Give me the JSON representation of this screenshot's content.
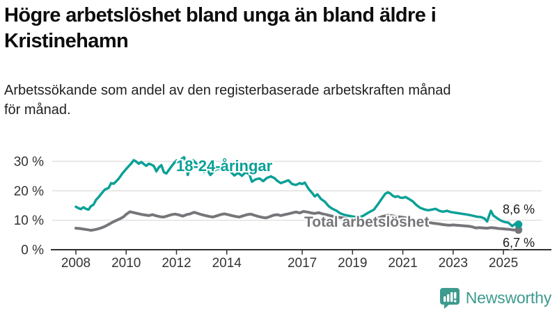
{
  "header": {
    "title_lines": [
      "Högre arbetslöshet bland unga än bland äldre i",
      "Kristinehamn"
    ],
    "subtitle_lines": [
      "Arbetssökande som andel av den registerbaserade arbetskraften månad",
      "för månad."
    ]
  },
  "chart_data": {
    "type": "line",
    "title": "Högre arbetslöshet bland unga än bland äldre i Kristinehamn",
    "subtitle": "Arbetssökande som andel av den registerbaserade arbetskraften månad för månad.",
    "xlabel": "",
    "ylabel": "",
    "xlim": [
      2007.1,
      2026.9
    ],
    "ylim": [
      0,
      33
    ],
    "grid": "horizontal",
    "legend_position": "inline-labels",
    "x_ticks": [
      2008,
      2010,
      2012,
      2014,
      2017,
      2019,
      2021,
      2023,
      2025
    ],
    "x_tick_labels": [
      "2008",
      "2010",
      "2012",
      "2014",
      "2017",
      "2019",
      "2021",
      "2023",
      "2025"
    ],
    "y_ticks": [
      0,
      10,
      20,
      30
    ],
    "y_tick_labels": [
      "0 %",
      "10 %",
      "20 %",
      "30 %"
    ],
    "series": [
      {
        "name": "18-24-åringar",
        "color": "#0ba097",
        "end_label": "8,6 %",
        "end_value": 8.6,
        "x": [
          2008.0,
          2008.1,
          2008.2,
          2008.3,
          2008.4,
          2008.5,
          2008.6,
          2008.7,
          2008.8,
          2008.9,
          2009.0,
          2009.15,
          2009.3,
          2009.4,
          2009.5,
          2009.6,
          2009.7,
          2009.85,
          2010.0,
          2010.1,
          2010.2,
          2010.3,
          2010.4,
          2010.5,
          2010.6,
          2010.7,
          2010.8,
          2010.9,
          2011.0,
          2011.1,
          2011.2,
          2011.3,
          2011.4,
          2011.5,
          2011.6,
          2011.7,
          2011.8,
          2011.9,
          2012.0,
          2012.1,
          2012.2,
          2012.3,
          2012.4,
          2012.45,
          2012.55,
          2012.65,
          2012.75,
          2012.85,
          2013.0,
          2013.1,
          2013.2,
          2013.35,
          2013.5,
          2013.65,
          2013.8,
          2014.0,
          2014.15,
          2014.3,
          2014.45,
          2014.6,
          2014.75,
          2014.9,
          2015.0,
          2015.15,
          2015.3,
          2015.45,
          2015.6,
          2015.75,
          2015.9,
          2016.0,
          2016.15,
          2016.3,
          2016.45,
          2016.6,
          2016.75,
          2016.9,
          2017.0,
          2017.1,
          2017.25,
          2017.4,
          2017.5,
          2017.6,
          2017.75,
          2017.9,
          2018.05,
          2018.2,
          2018.35,
          2018.5,
          2018.65,
          2018.8,
          2019.0,
          2019.2,
          2019.4,
          2019.55,
          2019.7,
          2019.85,
          2020.0,
          2020.15,
          2020.3,
          2020.4,
          2020.5,
          2020.6,
          2020.7,
          2020.8,
          2020.9,
          2021.0,
          2021.1,
          2021.25,
          2021.4,
          2021.55,
          2021.7,
          2021.85,
          2022.0,
          2022.15,
          2022.3,
          2022.45,
          2022.6,
          2022.75,
          2022.9,
          2023.05,
          2023.2,
          2023.35,
          2023.5,
          2023.65,
          2023.8,
          2023.95,
          2024.1,
          2024.25,
          2024.35,
          2024.5,
          2024.6,
          2024.75,
          2024.9,
          2025.05,
          2025.2,
          2025.35,
          2025.5,
          2025.6
        ],
        "values": [
          14.6,
          14.1,
          13.8,
          14.4,
          13.9,
          13.6,
          14.8,
          15.3,
          16.9,
          17.8,
          18.9,
          20.4,
          21.0,
          22.6,
          22.4,
          23.2,
          24.1,
          25.9,
          27.4,
          28.4,
          29.3,
          30.4,
          29.9,
          29.2,
          29.8,
          29.1,
          28.5,
          29.2,
          28.9,
          28.4,
          26.6,
          28.0,
          28.7,
          26.3,
          25.9,
          27.1,
          28.3,
          29.4,
          30.3,
          29.4,
          30.8,
          31.4,
          28.9,
          25.4,
          28.3,
          30.4,
          29.6,
          28.7,
          27.6,
          26.4,
          27.3,
          25.4,
          26.8,
          27.6,
          26.9,
          27.3,
          26.5,
          25.2,
          26.1,
          25.1,
          26.3,
          25.6,
          23.1,
          23.9,
          24.2,
          23.3,
          24.4,
          24.9,
          24.3,
          23.4,
          22.6,
          23.1,
          23.6,
          22.3,
          22.0,
          22.6,
          22.3,
          22.8,
          20.7,
          19.2,
          18.1,
          18.8,
          17.2,
          16.3,
          14.8,
          13.9,
          13.3,
          12.4,
          11.9,
          11.6,
          11.3,
          11.0,
          11.4,
          12.2,
          12.9,
          13.6,
          15.3,
          17.2,
          19.0,
          19.5,
          19.1,
          18.3,
          17.9,
          18.2,
          17.7,
          17.6,
          17.9,
          17.2,
          16.4,
          15.1,
          14.2,
          13.7,
          13.4,
          13.6,
          13.9,
          13.2,
          12.9,
          13.2,
          12.8,
          12.6,
          12.4,
          12.2,
          12.0,
          11.8,
          11.5,
          11.2,
          11.1,
          10.6,
          9.6,
          13.2,
          11.6,
          10.7,
          9.9,
          9.4,
          9.2,
          8.0,
          9.0,
          8.6
        ]
      },
      {
        "name": "Total arbetslöshet",
        "color": "#76767a",
        "end_label": "6,7 %",
        "end_value": 6.7,
        "x": [
          2008.0,
          2008.15,
          2008.3,
          2008.45,
          2008.6,
          2008.75,
          2008.9,
          2009.0,
          2009.15,
          2009.3,
          2009.45,
          2009.6,
          2009.75,
          2009.9,
          2010.0,
          2010.15,
          2010.3,
          2010.45,
          2010.6,
          2010.75,
          2010.9,
          2011.05,
          2011.2,
          2011.35,
          2011.5,
          2011.65,
          2011.8,
          2011.95,
          2012.1,
          2012.25,
          2012.4,
          2012.55,
          2012.7,
          2012.85,
          2013.0,
          2013.15,
          2013.3,
          2013.45,
          2013.6,
          2013.75,
          2013.9,
          2014.05,
          2014.2,
          2014.35,
          2014.5,
          2014.65,
          2014.8,
          2014.95,
          2015.1,
          2015.25,
          2015.4,
          2015.55,
          2015.7,
          2015.85,
          2016.0,
          2016.15,
          2016.3,
          2016.45,
          2016.6,
          2016.75,
          2016.9,
          2017.05,
          2017.2,
          2017.35,
          2017.5,
          2017.65,
          2017.8,
          2017.95,
          2018.1,
          2018.25,
          2018.4,
          2018.55,
          2018.7,
          2018.85,
          2019.0,
          2019.2,
          2019.4,
          2019.6,
          2019.8,
          2020.0,
          2020.2,
          2020.4,
          2020.6,
          2020.8,
          2021.0,
          2021.2,
          2021.4,
          2021.6,
          2021.8,
          2022.0,
          2022.2,
          2022.4,
          2022.55,
          2022.7,
          2022.85,
          2023.0,
          2023.15,
          2023.3,
          2023.45,
          2023.6,
          2023.75,
          2023.9,
          2024.05,
          2024.2,
          2024.35,
          2024.5,
          2024.65,
          2024.8,
          2024.95,
          2025.1,
          2025.25,
          2025.4,
          2025.6
        ],
        "values": [
          7.3,
          7.2,
          7.0,
          6.8,
          6.6,
          6.8,
          7.1,
          7.4,
          7.9,
          8.6,
          9.3,
          9.9,
          10.5,
          11.2,
          12.0,
          12.9,
          12.6,
          12.3,
          12.0,
          11.8,
          11.6,
          11.9,
          11.5,
          11.2,
          11.1,
          11.5,
          11.9,
          12.1,
          11.8,
          11.4,
          11.9,
          12.2,
          12.7,
          12.3,
          11.9,
          11.6,
          11.3,
          11.1,
          11.5,
          11.9,
          12.2,
          11.9,
          11.6,
          11.3,
          11.1,
          11.5,
          11.9,
          12.1,
          11.7,
          11.3,
          11.0,
          10.8,
          11.2,
          11.7,
          11.9,
          11.6,
          11.9,
          12.2,
          12.5,
          12.8,
          12.5,
          13.0,
          12.8,
          12.5,
          12.3,
          12.6,
          12.2,
          11.9,
          11.6,
          11.3,
          11.1,
          10.9,
          10.7,
          10.5,
          10.4,
          10.2,
          10.1,
          10.0,
          10.2,
          10.7,
          11.3,
          11.7,
          11.5,
          11.2,
          11.0,
          10.7,
          10.4,
          10.0,
          9.6,
          9.3,
          9.0,
          8.8,
          8.6,
          8.4,
          8.3,
          8.4,
          8.3,
          8.2,
          8.1,
          8.0,
          7.8,
          7.4,
          7.5,
          7.4,
          7.3,
          7.5,
          7.4,
          7.2,
          7.1,
          7.0,
          6.9,
          6.7,
          6.7
        ]
      }
    ]
  },
  "footer": {
    "brand": "Newsworthy",
    "brand_color": "#3d9a8e"
  },
  "icons": {
    "logo": "newsworthy-speech-bubble-bar-chart-icon"
  },
  "colors": {
    "young_line": "#0ba097",
    "total_line": "#76767a",
    "gridline": "#d9d9d9",
    "axis": "#2e2e2e",
    "tick_label": "#333333",
    "end_label": "#1a1a1a",
    "title": "#0d0d0d",
    "subtitle": "#1f1f1f"
  }
}
